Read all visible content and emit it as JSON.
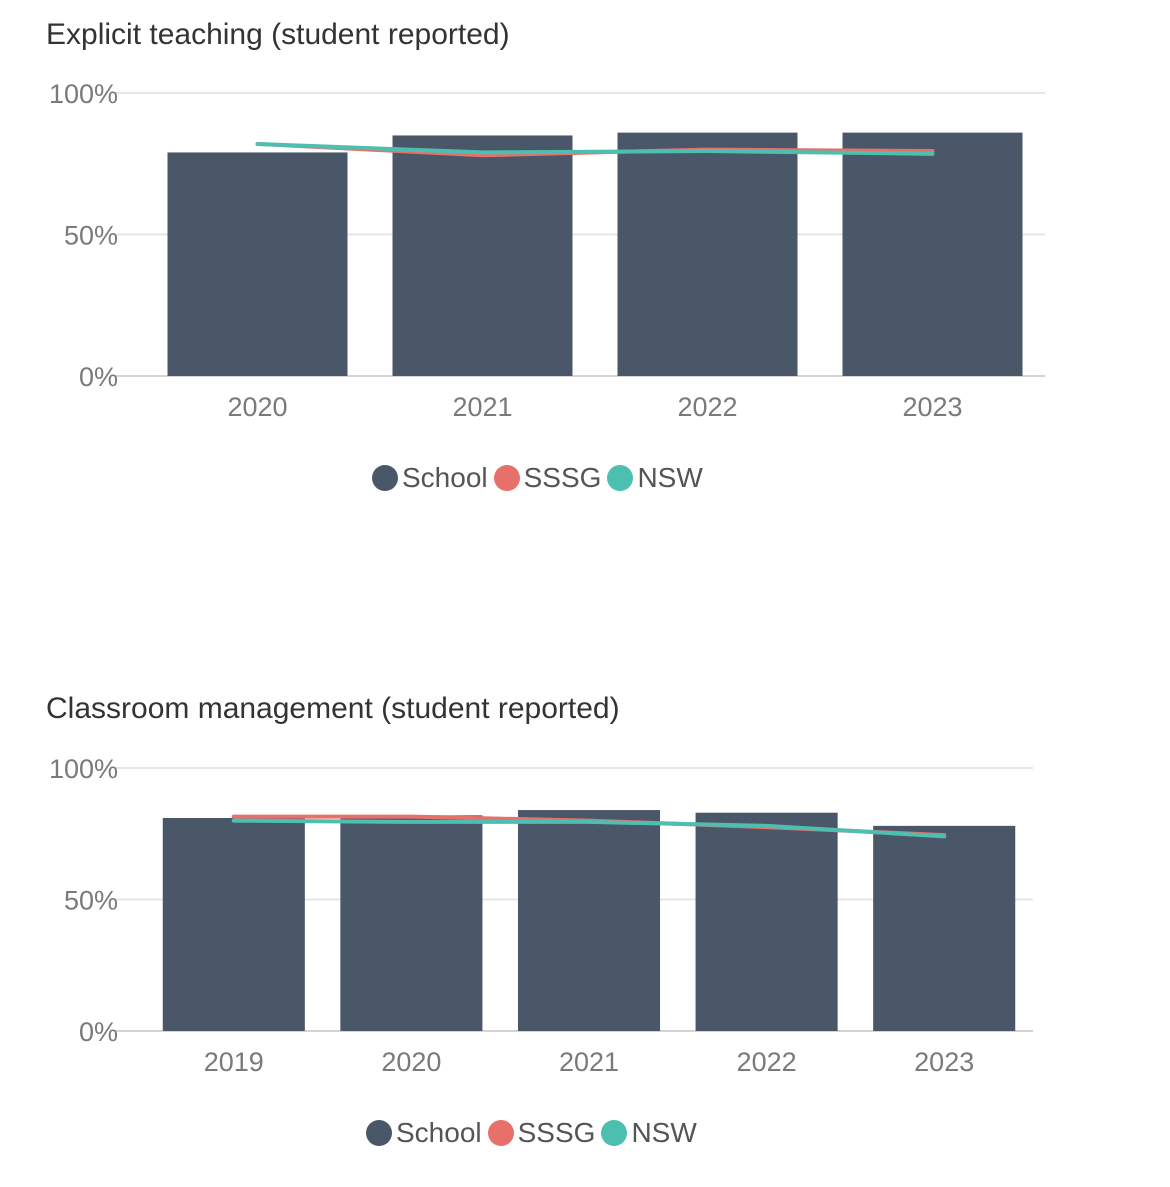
{
  "colors": {
    "school": "#4a5768",
    "sssg": "#e8706a",
    "nsw": "#4dbfb1",
    "grid": "#e6e6e6",
    "tick": "#7a7a7a"
  },
  "chart_data": [
    {
      "type": "bar",
      "title": "Explicit teaching (student reported)",
      "categories": [
        "2020",
        "2021",
        "2022",
        "2023"
      ],
      "ylim": [
        0,
        100
      ],
      "yticks": [
        "0%",
        "50%",
        "100%"
      ],
      "ytick_values": [
        0,
        50,
        100
      ],
      "grid": true,
      "legend_position": "bottom",
      "series": [
        {
          "name": "School",
          "kind": "bar",
          "values": [
            79,
            85,
            86,
            86
          ]
        },
        {
          "name": "SSSG",
          "kind": "line",
          "values": [
            82,
            78,
            80,
            79.5
          ]
        },
        {
          "name": "NSW",
          "kind": "line",
          "values": [
            82,
            79,
            79.5,
            78.5
          ]
        }
      ]
    },
    {
      "type": "bar",
      "title": "Classroom management (student reported)",
      "categories": [
        "2019",
        "2020",
        "2021",
        "2022",
        "2023"
      ],
      "ylim": [
        0,
        100
      ],
      "yticks": [
        "0%",
        "50%",
        "100%"
      ],
      "ytick_values": [
        0,
        50,
        100
      ],
      "grid": true,
      "legend_position": "bottom",
      "series": [
        {
          "name": "School",
          "kind": "bar",
          "values": [
            81,
            82,
            84,
            83,
            78
          ]
        },
        {
          "name": "SSSG",
          "kind": "line",
          "values": [
            81.5,
            81.5,
            80,
            77.5,
            74.5
          ]
        },
        {
          "name": "NSW",
          "kind": "line",
          "values": [
            80,
            79.5,
            79.5,
            78,
            74
          ]
        }
      ]
    }
  ]
}
